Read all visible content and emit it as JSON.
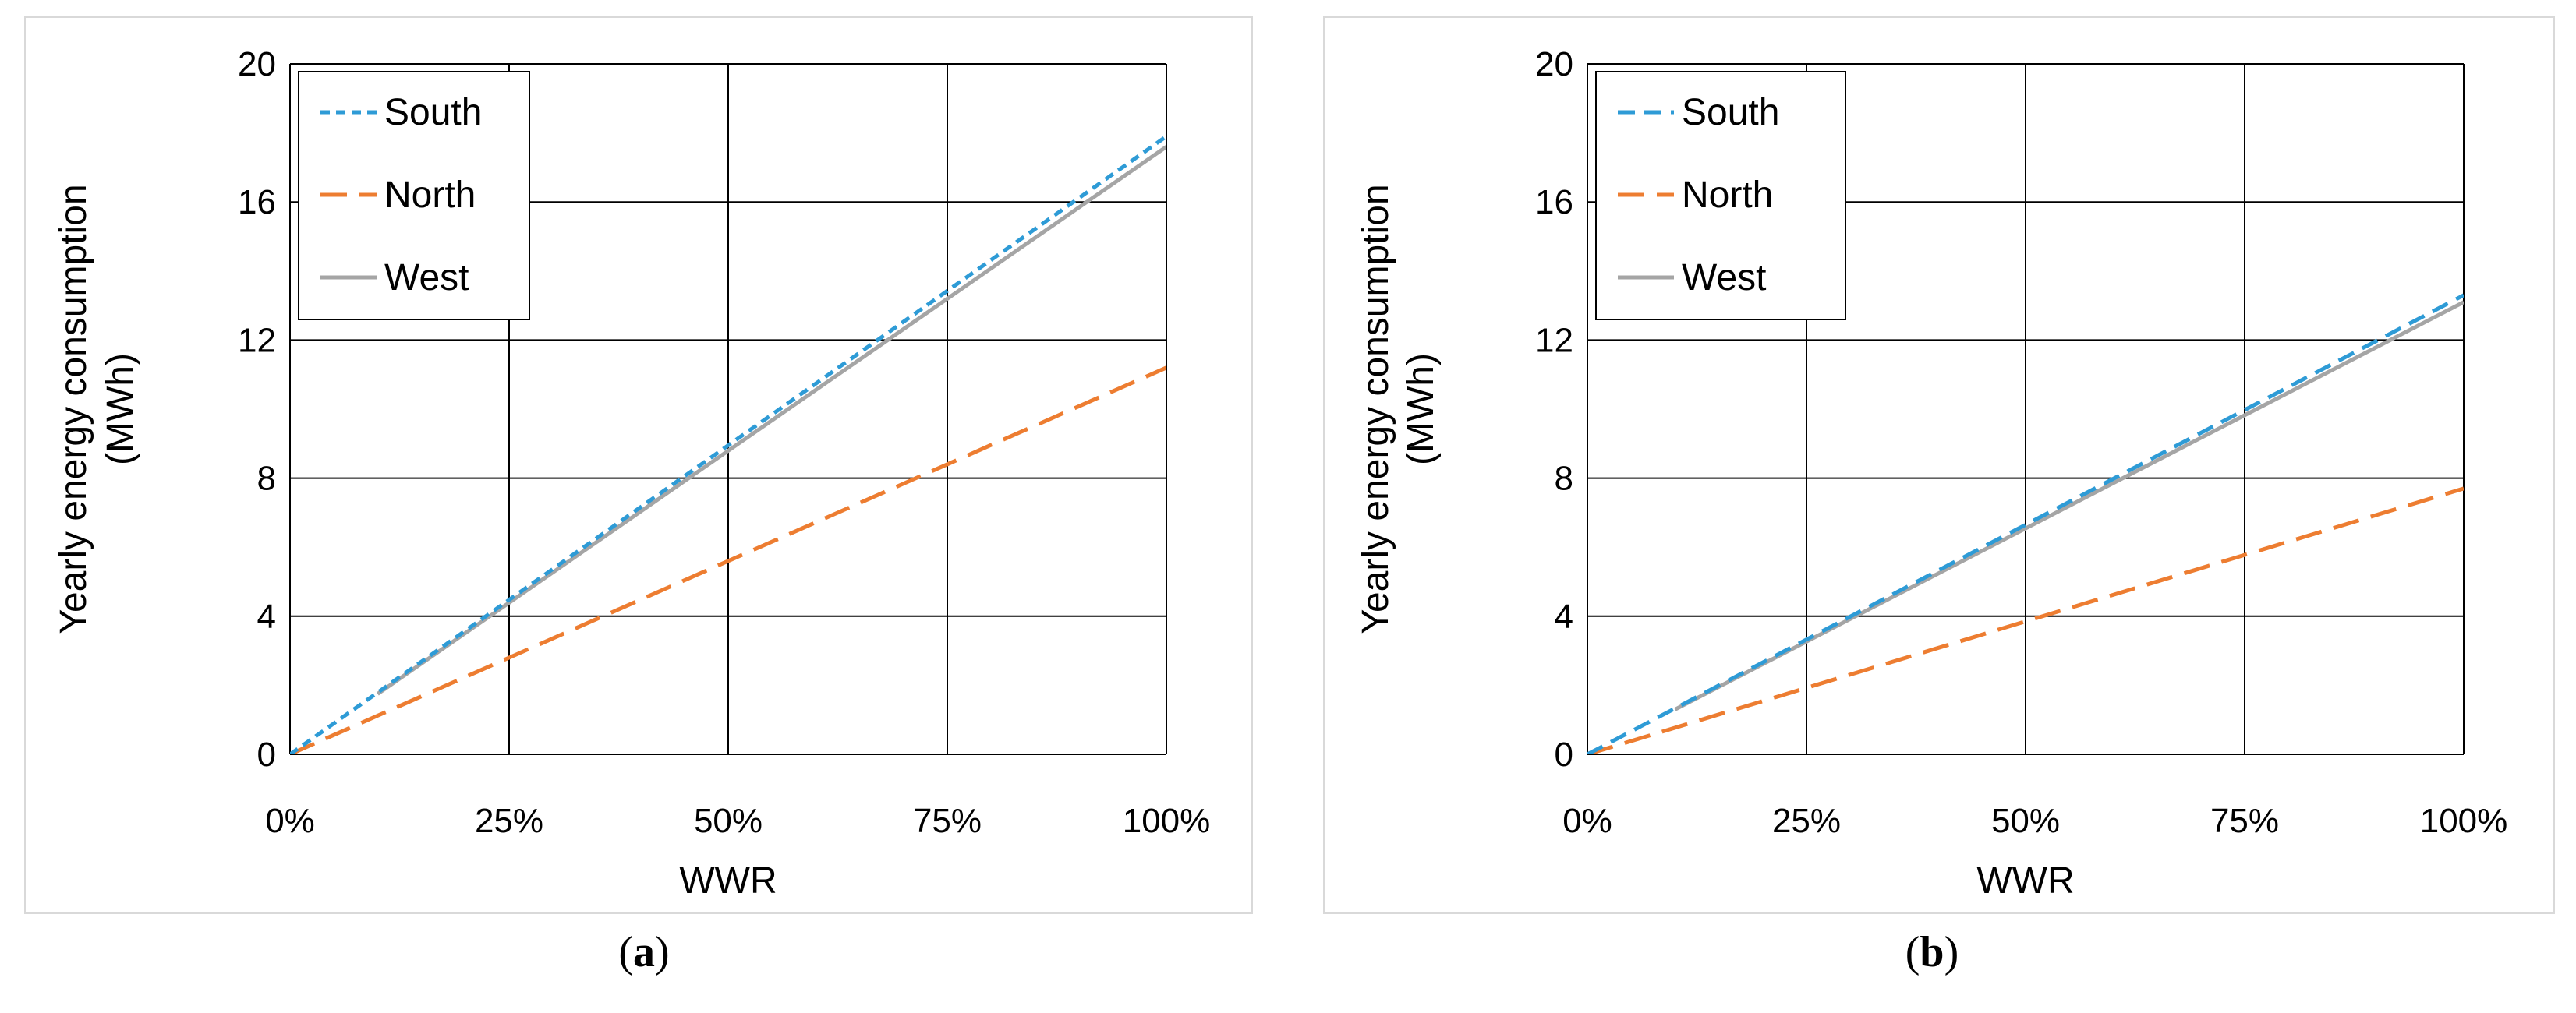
{
  "chart_data": [
    {
      "type": "line",
      "caption": "a",
      "xlabel": "WWR",
      "ylabel_line1": "Yearly energy consumption",
      "ylabel_line2": "(MWh)",
      "xlim": [
        0,
        100
      ],
      "ylim": [
        0,
        20
      ],
      "xticks": [
        0,
        25,
        50,
        75,
        100
      ],
      "xtick_labels": [
        "0%",
        "25%",
        "50%",
        "75%",
        "100%"
      ],
      "yticks": [
        0,
        4,
        8,
        12,
        16,
        20
      ],
      "ytick_labels": [
        "0",
        "4",
        "8",
        "12",
        "16",
        "20"
      ],
      "grid": true,
      "legend_position": "top-left",
      "series": [
        {
          "name": "South",
          "color": "#2E9BD6",
          "style": "short-dash",
          "x": [
            0,
            100
          ],
          "y": [
            0,
            17.9
          ]
        },
        {
          "name": "North",
          "color": "#ED7D31",
          "style": "long-dash",
          "x": [
            0,
            100
          ],
          "y": [
            0,
            11.2
          ]
        },
        {
          "name": "West",
          "color": "#A5A5A5",
          "style": "solid",
          "x": [
            10,
            100
          ],
          "y": [
            1.75,
            17.6
          ]
        }
      ]
    },
    {
      "type": "line",
      "caption": "b",
      "xlabel": "WWR",
      "ylabel_line1": "Yearly energy consumption",
      "ylabel_line2": "(MWh)",
      "xlim": [
        0,
        100
      ],
      "ylim": [
        0,
        20
      ],
      "xticks": [
        0,
        25,
        50,
        75,
        100
      ],
      "xtick_labels": [
        "0%",
        "25%",
        "50%",
        "75%",
        "100%"
      ],
      "yticks": [
        0,
        4,
        8,
        12,
        16,
        20
      ],
      "ytick_labels": [
        "0",
        "4",
        "8",
        "12",
        "16",
        "20"
      ],
      "grid": true,
      "legend_position": "top-left",
      "series": [
        {
          "name": "South",
          "color": "#2E9BD6",
          "style": "dash",
          "x": [
            0,
            100
          ],
          "y": [
            0,
            13.3
          ]
        },
        {
          "name": "North",
          "color": "#ED7D31",
          "style": "long-dash",
          "x": [
            0,
            100
          ],
          "y": [
            0,
            7.7
          ]
        },
        {
          "name": "West",
          "color": "#A5A5A5",
          "style": "solid",
          "x": [
            10,
            100
          ],
          "y": [
            1.3,
            13.1
          ]
        }
      ]
    }
  ]
}
